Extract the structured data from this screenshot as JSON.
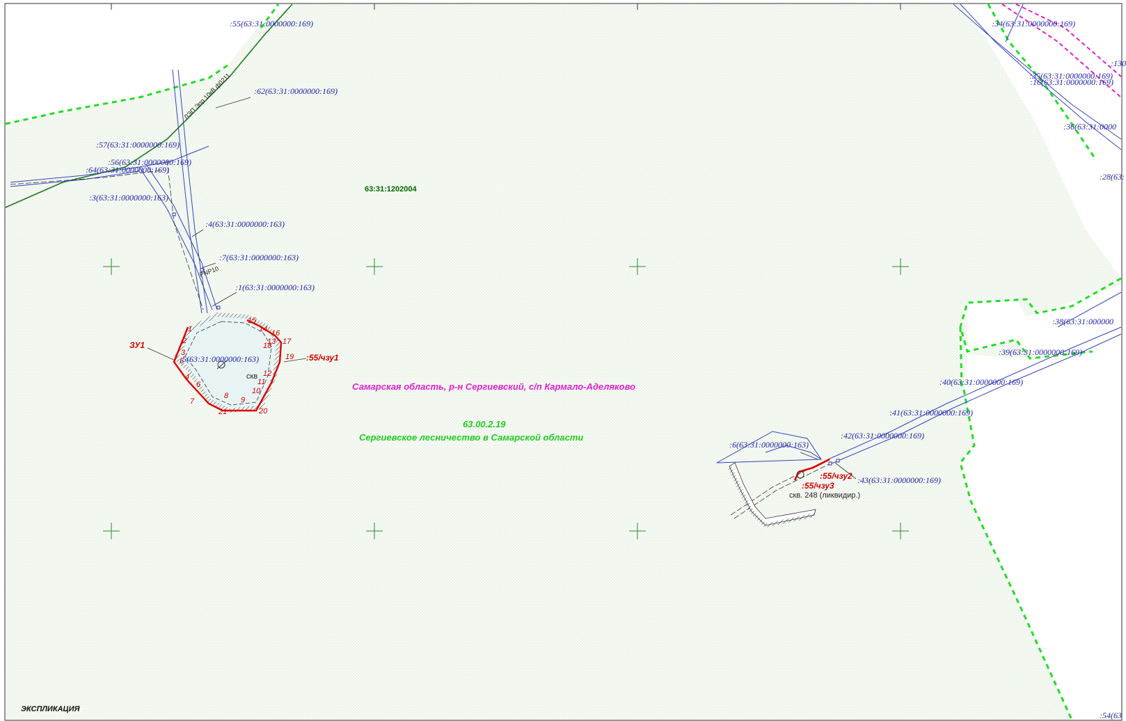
{
  "map": {
    "quarter_label": "63:31:1202004",
    "region_label": "Самарская область, р-н Сергиевский, с/п Кармало-Аделяково",
    "forestry_code": "63.00.2.19",
    "forestry_name": "Сергиевское лесничество в Самарской области",
    "explication_title": "ЭКСПЛИКАЦИЯ",
    "powerline_label": "ЛЭП Эпр 10кВ ф0211",
    "pnp_label": "PNP10",
    "zu_label": "ЗУ1",
    "chzu1_label": ":55/чзу1",
    "chzu2_label": ":55/чзу2",
    "chzu3_label": ":55/чзу3",
    "well_label": "скв. 248 (ликвидир.)",
    "well_short_label": "скв",
    "parcels": [
      ":55(63:31:0000000:169)",
      ":62(63:31:0000000:169)",
      ":57(63:31:0000000:169)",
      ":56(63:31:0000000:169)",
      ":64(63:31:0000000:169)",
      ":3(63:31:0000000:163)",
      ":4(63:31:0000000:163)",
      ":7(63:31:0000000:163)",
      ":1(63:31:0000000:163)",
      ":5(63:31:0000000:163)",
      ":34(63:31:0000000:169)",
      ":130",
      ":35(63:31:0000000:169)",
      ":16(63:31:0000000:169)",
      ":36(63:31:0000",
      ":28(63:",
      ":38(63:31:000000",
      ":39(63:31:0000000:169)",
      ":40(63:31:0000000:169)",
      ":41(63:31:0000000:169)",
      ":42(63:31:0000000:169)",
      ":6(63:31:0000000:163)",
      ":43(63:31:0000000:169)",
      ":54(63"
    ],
    "point_numbers": [
      "1",
      "2",
      "3",
      "4",
      "5",
      "6",
      "7",
      "8",
      "9",
      "10",
      "11",
      "12",
      "13",
      "14",
      "15",
      "16",
      "17",
      "18",
      "19",
      "20",
      "21"
    ]
  }
}
